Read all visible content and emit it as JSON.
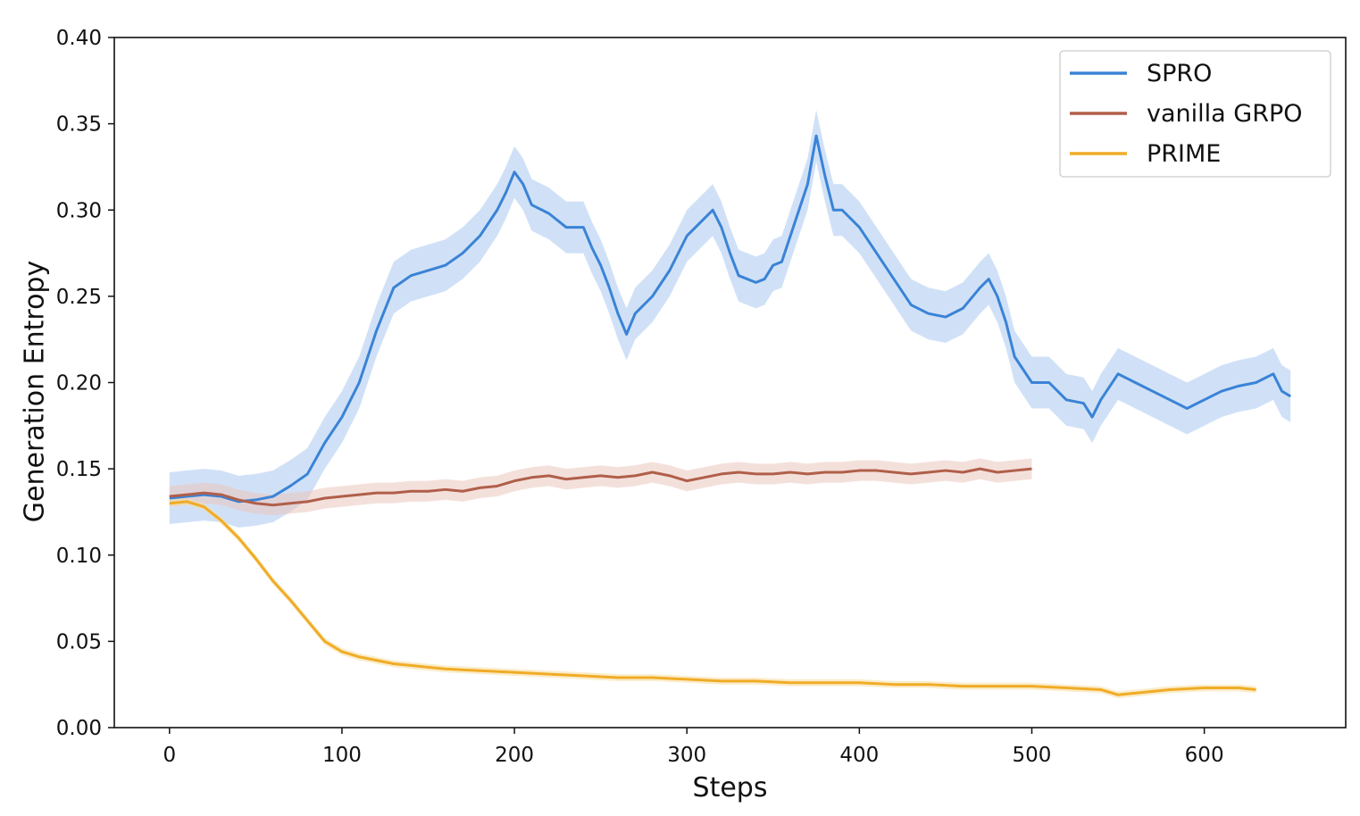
{
  "chart_data": {
    "type": "line",
    "title": "",
    "xlabel": "Steps",
    "ylabel": "Generation Entropy",
    "xlim": [
      -32,
      682
    ],
    "ylim": [
      0.0,
      0.4
    ],
    "xticks": [
      0,
      100,
      200,
      300,
      400,
      500,
      600
    ],
    "xtick_labels": [
      "0",
      "100",
      "200",
      "300",
      "400",
      "500",
      "600"
    ],
    "yticks": [
      0.0,
      0.05,
      0.1,
      0.15,
      0.2,
      0.25,
      0.3,
      0.35,
      0.4
    ],
    "ytick_labels": [
      "0.00",
      "0.05",
      "0.10",
      "0.15",
      "0.20",
      "0.25",
      "0.30",
      "0.35",
      "0.40"
    ],
    "grid": false,
    "legend_position": "top-right",
    "series": [
      {
        "name": "SPRO",
        "color": "#3a83d6",
        "band_color": "#a9c9f0",
        "band_halfwidth": 0.015,
        "x": [
          0,
          10,
          20,
          30,
          40,
          50,
          60,
          70,
          80,
          90,
          100,
          110,
          120,
          130,
          140,
          150,
          160,
          170,
          180,
          190,
          195,
          200,
          205,
          210,
          220,
          230,
          240,
          245,
          250,
          255,
          260,
          265,
          270,
          280,
          290,
          300,
          310,
          315,
          320,
          325,
          330,
          340,
          345,
          350,
          355,
          360,
          365,
          370,
          375,
          380,
          385,
          390,
          400,
          410,
          420,
          430,
          440,
          450,
          460,
          470,
          475,
          480,
          485,
          490,
          500,
          510,
          520,
          530,
          535,
          540,
          550,
          560,
          570,
          580,
          590,
          600,
          610,
          620,
          630,
          640,
          645,
          650
        ],
        "values": [
          0.133,
          0.134,
          0.135,
          0.134,
          0.131,
          0.132,
          0.134,
          0.14,
          0.147,
          0.165,
          0.18,
          0.2,
          0.23,
          0.255,
          0.262,
          0.265,
          0.268,
          0.275,
          0.285,
          0.3,
          0.31,
          0.322,
          0.315,
          0.303,
          0.298,
          0.29,
          0.29,
          0.278,
          0.268,
          0.255,
          0.24,
          0.228,
          0.24,
          0.25,
          0.265,
          0.285,
          0.295,
          0.3,
          0.29,
          0.275,
          0.262,
          0.258,
          0.26,
          0.268,
          0.27,
          0.285,
          0.3,
          0.315,
          0.343,
          0.32,
          0.3,
          0.3,
          0.29,
          0.275,
          0.26,
          0.245,
          0.24,
          0.238,
          0.243,
          0.255,
          0.26,
          0.25,
          0.235,
          0.215,
          0.2,
          0.2,
          0.19,
          0.188,
          0.18,
          0.19,
          0.205,
          0.2,
          0.195,
          0.19,
          0.185,
          0.19,
          0.195,
          0.198,
          0.2,
          0.205,
          0.195,
          0.192
        ]
      },
      {
        "name": "vanilla GRPO",
        "color": "#b05f4a",
        "band_color": "#ebc6bd",
        "band_halfwidth": 0.006,
        "x": [
          0,
          10,
          20,
          30,
          40,
          50,
          60,
          70,
          80,
          90,
          100,
          110,
          120,
          130,
          140,
          150,
          160,
          170,
          180,
          190,
          200,
          210,
          220,
          230,
          240,
          250,
          260,
          270,
          280,
          290,
          300,
          310,
          320,
          330,
          340,
          350,
          360,
          370,
          380,
          390,
          400,
          410,
          420,
          430,
          440,
          450,
          460,
          470,
          480,
          490,
          500
        ],
        "values": [
          0.134,
          0.135,
          0.136,
          0.135,
          0.132,
          0.13,
          0.129,
          0.13,
          0.131,
          0.133,
          0.134,
          0.135,
          0.136,
          0.136,
          0.137,
          0.137,
          0.138,
          0.137,
          0.139,
          0.14,
          0.143,
          0.145,
          0.146,
          0.144,
          0.145,
          0.146,
          0.145,
          0.146,
          0.148,
          0.146,
          0.143,
          0.145,
          0.147,
          0.148,
          0.147,
          0.147,
          0.148,
          0.147,
          0.148,
          0.148,
          0.149,
          0.149,
          0.148,
          0.147,
          0.148,
          0.149,
          0.148,
          0.15,
          0.148,
          0.149,
          0.15
        ]
      },
      {
        "name": "PRIME",
        "color": "#f0ac26",
        "band_color": "#f8dc9e",
        "band_halfwidth": 0.002,
        "x": [
          0,
          10,
          20,
          30,
          40,
          50,
          60,
          70,
          80,
          90,
          100,
          110,
          120,
          130,
          140,
          150,
          160,
          180,
          200,
          220,
          240,
          260,
          280,
          300,
          320,
          340,
          360,
          380,
          400,
          420,
          440,
          460,
          480,
          500,
          520,
          540,
          550,
          560,
          580,
          600,
          620,
          630
        ],
        "values": [
          0.13,
          0.131,
          0.128,
          0.12,
          0.11,
          0.098,
          0.085,
          0.074,
          0.062,
          0.05,
          0.044,
          0.041,
          0.039,
          0.037,
          0.036,
          0.035,
          0.034,
          0.033,
          0.032,
          0.031,
          0.03,
          0.029,
          0.029,
          0.028,
          0.027,
          0.027,
          0.026,
          0.026,
          0.026,
          0.025,
          0.025,
          0.024,
          0.024,
          0.024,
          0.023,
          0.022,
          0.019,
          0.02,
          0.022,
          0.023,
          0.023,
          0.022
        ]
      }
    ]
  }
}
